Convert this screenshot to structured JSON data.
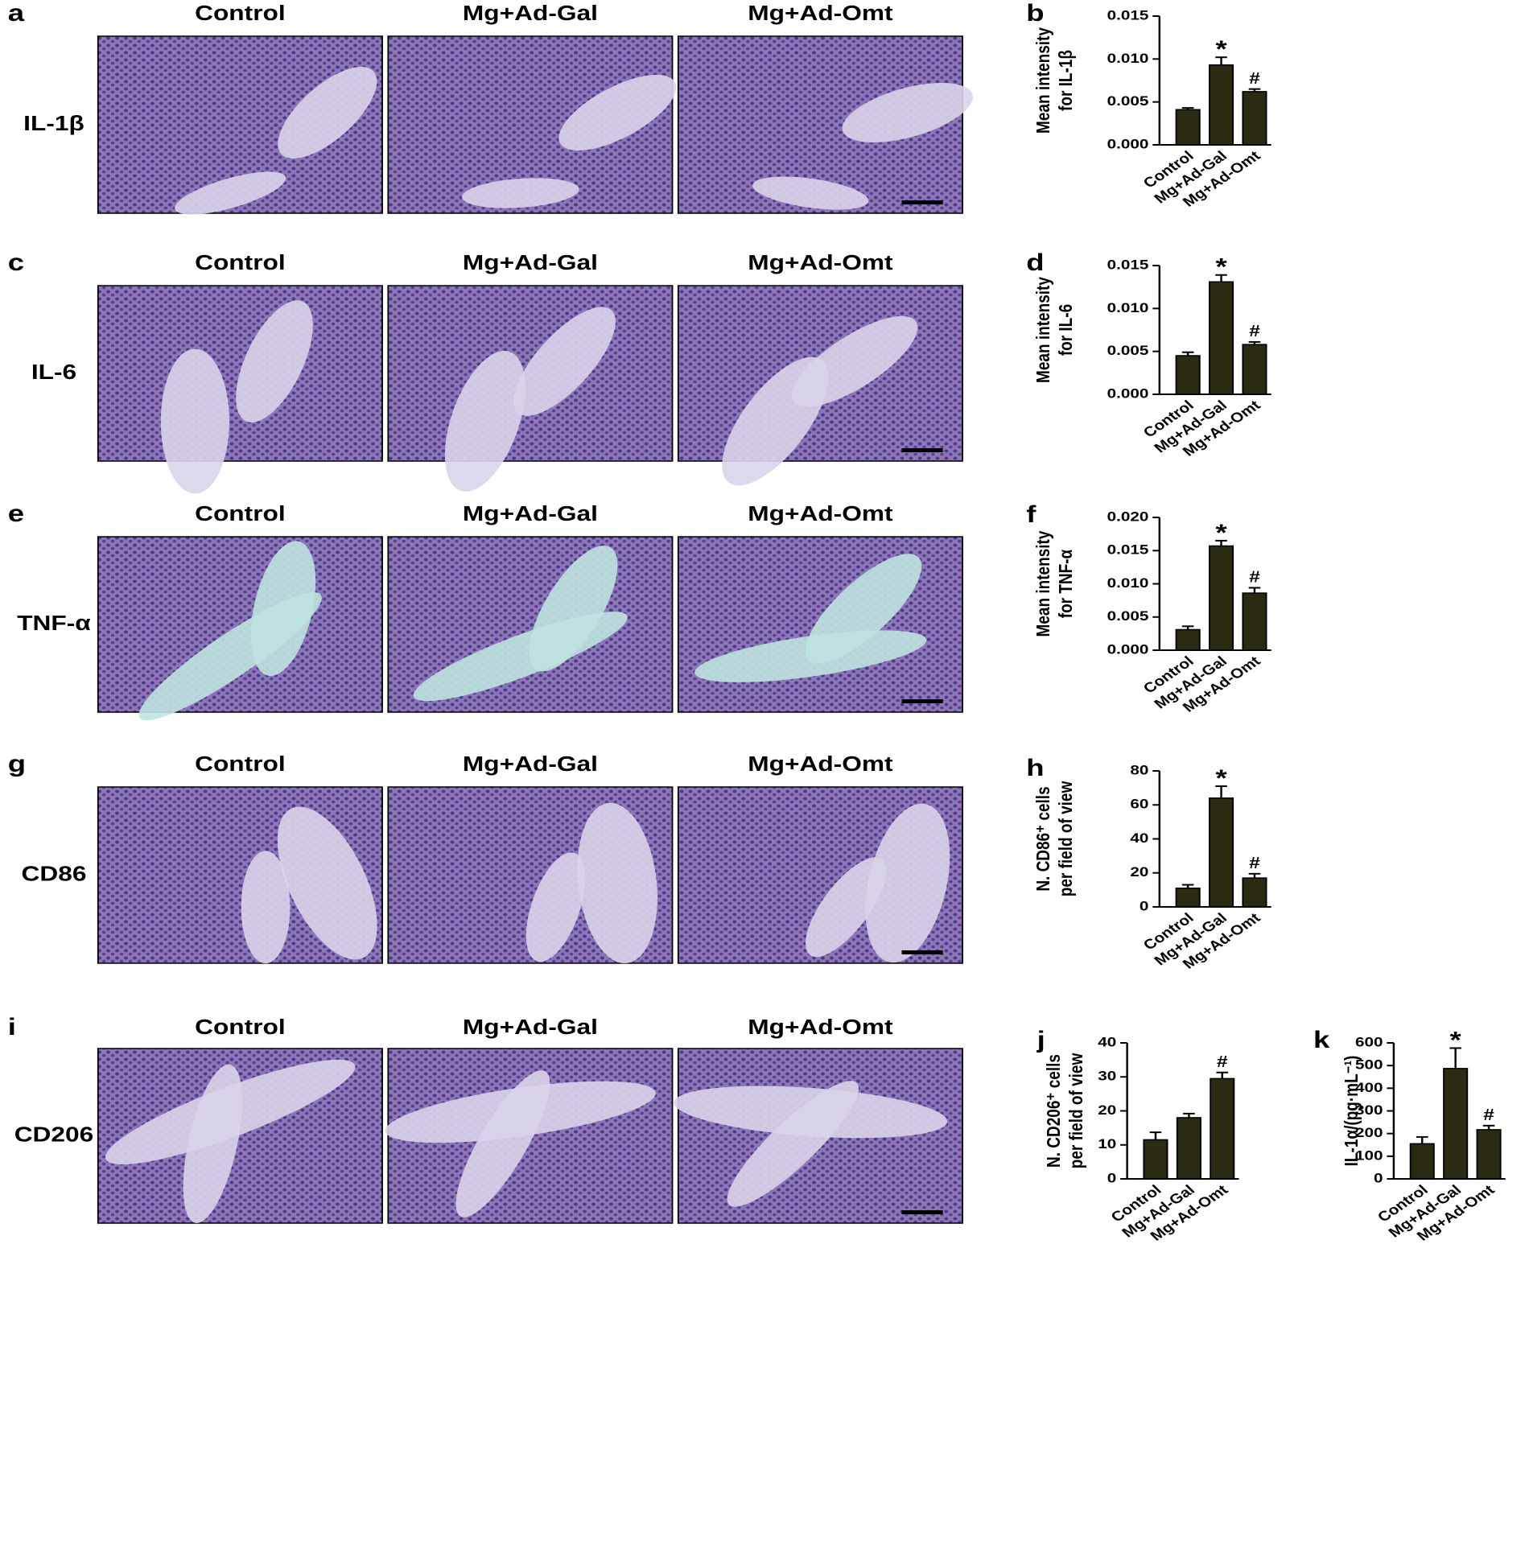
{
  "figure": {
    "rows": [
      {
        "panel_label": "a",
        "marker": "IL-1β",
        "columns": [
          "Control",
          "Mg+Ad-Gal",
          "Mg+Ad-Omt"
        ]
      },
      {
        "panel_label": "c",
        "marker": "IL-6",
        "columns": [
          "Control",
          "Mg+Ad-Gal",
          "Mg+Ad-Omt"
        ]
      },
      {
        "panel_label": "e",
        "marker": "TNF-α",
        "columns": [
          "Control",
          "Mg+Ad-Gal",
          "Mg+Ad-Omt"
        ]
      },
      {
        "panel_label": "g",
        "marker": "CD86",
        "columns": [
          "Control",
          "Mg+Ad-Gal",
          "Mg+Ad-Omt"
        ]
      },
      {
        "panel_label": "i",
        "marker": "CD206",
        "columns": [
          "Control",
          "Mg+Ad-Gal",
          "Mg+Ad-Omt"
        ]
      }
    ]
  },
  "chart_data": [
    {
      "type": "bar",
      "panel_label": "b",
      "ylabel": [
        "Mean intensity",
        "for IL-1β"
      ],
      "categories": [
        "Control",
        "Mg+Ad-Gal",
        "Mg+Ad-Omt"
      ],
      "values": [
        0.0041,
        0.0093,
        0.0062
      ],
      "errors": [
        0.0002,
        0.0009,
        0.0003
      ],
      "annotations": [
        null,
        "*",
        "#"
      ],
      "color": "#2b2a12",
      "ylim": [
        0,
        0.015
      ],
      "yticks": [
        {
          "value": 0,
          "label": "0.000"
        },
        {
          "value": 0.005,
          "label": "0.005"
        },
        {
          "value": 0.01,
          "label": "0.010"
        },
        {
          "value": 0.015,
          "label": "0.015"
        }
      ]
    },
    {
      "type": "bar",
      "panel_label": "d",
      "ylabel": [
        "Mean intensity",
        "for IL-6"
      ],
      "categories": [
        "Control",
        "Mg+Ad-Gal",
        "Mg+Ad-Omt"
      ],
      "values": [
        0.0045,
        0.0131,
        0.0058
      ],
      "errors": [
        0.0004,
        0.0008,
        0.0003
      ],
      "annotations": [
        null,
        "*",
        "#"
      ],
      "color": "#2b2a12",
      "ylim": [
        0,
        0.015
      ],
      "yticks": [
        {
          "value": 0,
          "label": "0.000"
        },
        {
          "value": 0.005,
          "label": "0.005"
        },
        {
          "value": 0.01,
          "label": "0.010"
        },
        {
          "value": 0.015,
          "label": "0.015"
        }
      ]
    },
    {
      "type": "bar",
      "panel_label": "f",
      "ylabel": [
        "Mean intensity",
        "for TNF-α"
      ],
      "categories": [
        "Control",
        "Mg+Ad-Gal",
        "Mg+Ad-Omt"
      ],
      "values": [
        0.0031,
        0.0157,
        0.0086
      ],
      "errors": [
        0.0005,
        0.0008,
        0.0008
      ],
      "annotations": [
        null,
        "*",
        "#"
      ],
      "color": "#2b2a12",
      "ylim": [
        0,
        0.02
      ],
      "yticks": [
        {
          "value": 0,
          "label": "0.000"
        },
        {
          "value": 0.005,
          "label": "0.005"
        },
        {
          "value": 0.01,
          "label": "0.010"
        },
        {
          "value": 0.015,
          "label": "0.015"
        },
        {
          "value": 0.02,
          "label": "0.020"
        }
      ]
    },
    {
      "type": "bar",
      "panel_label": "h",
      "ylabel": [
        "N. CD86⁺ cells",
        "per field of view"
      ],
      "categories": [
        "Control",
        "Mg+Ad-Gal",
        "Mg+Ad-Omt"
      ],
      "values": [
        11,
        64,
        17
      ],
      "errors": [
        2,
        7,
        2.5
      ],
      "annotations": [
        null,
        "*",
        "#"
      ],
      "color": "#2b2a12",
      "ylim": [
        0,
        80
      ],
      "yticks": [
        0,
        20,
        40,
        60,
        80
      ]
    },
    {
      "type": "bar",
      "panel_label": "j",
      "ylabel": [
        "N. CD206⁺ cells",
        "per field of view"
      ],
      "categories": [
        "Control",
        "Mg+Ad-Gal",
        "Mg+Ad-Omt"
      ],
      "values": [
        11.5,
        18,
        29.5
      ],
      "errors": [
        2.2,
        1.2,
        1.8
      ],
      "annotations": [
        null,
        null,
        "#"
      ],
      "color": "#2b2a12",
      "ylim": [
        0,
        40
      ],
      "yticks": [
        0,
        10,
        20,
        30,
        40
      ]
    },
    {
      "type": "bar",
      "panel_label": "k",
      "ylabel": [
        "IL-1α/(pg·mL⁻¹)"
      ],
      "categories": [
        "Control",
        "Mg+Ad-Gal",
        "Mg+Ad-Omt"
      ],
      "values": [
        155,
        487,
        217
      ],
      "errors": [
        30,
        90,
        18
      ],
      "annotations": [
        null,
        "*",
        "#"
      ],
      "color": "#2b2a12",
      "ylim": [
        0,
        600
      ],
      "yticks": [
        0,
        100,
        200,
        300,
        400,
        500,
        600
      ]
    }
  ]
}
